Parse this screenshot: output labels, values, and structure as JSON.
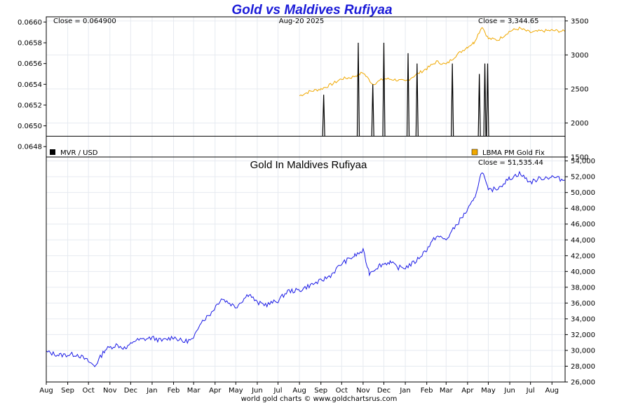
{
  "chart_data": [
    {
      "type": "line",
      "title": "Gold vs Maldives Rufiyaa",
      "date_label": "Aug-20  2025",
      "left_close": "Close = 0.064900",
      "right_close": "Close = 3,344.65",
      "y_left_ticks": [
        "0.0648",
        "0.0650",
        "0.0652",
        "0.0654",
        "0.0656",
        "0.0658",
        "0.0660"
      ],
      "y_left_range": [
        0.0647,
        0.06605
      ],
      "y_right_ticks": [
        "1500",
        "2000",
        "2500",
        "3000",
        "3500"
      ],
      "y_right_range": [
        1500,
        3560
      ],
      "legend": [
        "MVR / USD",
        "LBMA PM Gold Fix"
      ],
      "series": [
        {
          "name": "MVR / USD",
          "color": "#000000",
          "baseline": 0.0649,
          "spikes": [
            {
              "date": "2024-09-05",
              "value": 0.0653
            },
            {
              "date": "2024-10-25",
              "value": 0.0658
            },
            {
              "date": "2024-11-15",
              "value": 0.0654
            },
            {
              "date": "2024-12-01",
              "value": 0.0658
            },
            {
              "date": "2025-01-05",
              "value": 0.0657
            },
            {
              "date": "2025-01-18",
              "value": 0.0656
            },
            {
              "date": "2025-03-10",
              "value": 0.0656
            },
            {
              "date": "2025-04-18",
              "value": 0.0655
            },
            {
              "date": "2025-04-26",
              "value": 0.0656
            },
            {
              "date": "2025-04-30",
              "value": 0.0656
            }
          ]
        },
        {
          "name": "LBMA PM Gold Fix",
          "color": "#f0a800",
          "points": [
            [
              "2024-08-01",
              2400
            ],
            [
              "2024-08-15",
              2460
            ],
            [
              "2024-09-01",
              2500
            ],
            [
              "2024-09-15",
              2560
            ],
            [
              "2024-10-01",
              2650
            ],
            [
              "2024-10-15",
              2670
            ],
            [
              "2024-11-01",
              2740
            ],
            [
              "2024-11-15",
              2570
            ],
            [
              "2024-12-01",
              2650
            ],
            [
              "2024-12-15",
              2640
            ],
            [
              "2025-01-01",
              2610
            ],
            [
              "2025-01-15",
              2700
            ],
            [
              "2025-02-01",
              2800
            ],
            [
              "2025-02-15",
              2900
            ],
            [
              "2025-03-01",
              2860
            ],
            [
              "2025-03-15",
              2990
            ],
            [
              "2025-04-01",
              3120
            ],
            [
              "2025-04-10",
              3180
            ],
            [
              "2025-04-22",
              3420
            ],
            [
              "2025-05-01",
              3240
            ],
            [
              "2025-05-15",
              3220
            ],
            [
              "2025-06-01",
              3350
            ],
            [
              "2025-06-15",
              3390
            ],
            [
              "2025-07-01",
              3330
            ],
            [
              "2025-07-15",
              3350
            ],
            [
              "2025-08-01",
              3360
            ],
            [
              "2025-08-20",
              3344.65
            ]
          ]
        }
      ]
    },
    {
      "type": "line",
      "title": "Gold In Maldives Rufiyaa",
      "right_close": "Close = 51,535.44",
      "y_ticks": [
        "26,000",
        "28,000",
        "30,000",
        "32,000",
        "34,000",
        "36,000",
        "38,000",
        "40,000",
        "42,000",
        "44,000",
        "46,000",
        "48,000",
        "50,000",
        "52,000",
        "54,000"
      ],
      "y_range": [
        26000,
        54500
      ],
      "series": [
        {
          "name": "Gold In Maldives Rufiyaa",
          "color": "#1a1ae6",
          "points": [
            [
              "2023-08-01",
              29800
            ],
            [
              "2023-08-20",
              29400
            ],
            [
              "2023-09-15",
              29500
            ],
            [
              "2023-10-01",
              28600
            ],
            [
              "2023-10-10",
              28000
            ],
            [
              "2023-10-25",
              30100
            ],
            [
              "2023-11-10",
              30700
            ],
            [
              "2023-11-25",
              30200
            ],
            [
              "2023-12-05",
              31200
            ],
            [
              "2023-12-20",
              31400
            ],
            [
              "2024-01-01",
              31600
            ],
            [
              "2024-01-15",
              31200
            ],
            [
              "2024-02-01",
              31700
            ],
            [
              "2024-02-15",
              31100
            ],
            [
              "2024-03-01",
              31400
            ],
            [
              "2024-03-10",
              33500
            ],
            [
              "2024-03-25",
              34600
            ],
            [
              "2024-04-10",
              36600
            ],
            [
              "2024-04-20",
              36100
            ],
            [
              "2024-05-01",
              35500
            ],
            [
              "2024-05-20",
              37200
            ],
            [
              "2024-06-01",
              36000
            ],
            [
              "2024-06-15",
              35800
            ],
            [
              "2024-07-01",
              36300
            ],
            [
              "2024-07-15",
              37500
            ],
            [
              "2024-08-01",
              37600
            ],
            [
              "2024-08-15",
              38200
            ],
            [
              "2024-09-01",
              38800
            ],
            [
              "2024-09-15",
              39500
            ],
            [
              "2024-10-01",
              41000
            ],
            [
              "2024-10-20",
              42000
            ],
            [
              "2024-11-01",
              42600
            ],
            [
              "2024-11-10",
              39800
            ],
            [
              "2024-11-25",
              40800
            ],
            [
              "2024-12-10",
              41200
            ],
            [
              "2024-12-20",
              40500
            ],
            [
              "2025-01-01",
              40500
            ],
            [
              "2025-01-15",
              41200
            ],
            [
              "2025-02-01",
              42800
            ],
            [
              "2025-02-15",
              44500
            ],
            [
              "2025-03-01",
              44000
            ],
            [
              "2025-03-15",
              45800
            ],
            [
              "2025-04-01",
              47800
            ],
            [
              "2025-04-10",
              49000
            ],
            [
              "2025-04-22",
              52800
            ],
            [
              "2025-05-01",
              50200
            ],
            [
              "2025-05-15",
              50600
            ],
            [
              "2025-06-01",
              51800
            ],
            [
              "2025-06-15",
              52400
            ],
            [
              "2025-07-01",
              51300
            ],
            [
              "2025-07-15",
              51800
            ],
            [
              "2025-08-01",
              52000
            ],
            [
              "2025-08-20",
              51535.44
            ]
          ]
        }
      ]
    }
  ],
  "x_axis_ticks": [
    "Aug",
    "Sep",
    "Oct",
    "Nov",
    "Dec",
    "Jan",
    "Feb",
    "Mar",
    "Apr",
    "May",
    "Jun",
    "Jul",
    "Aug",
    "Sep",
    "Oct",
    "Nov",
    "Dec",
    "Jan",
    "Feb",
    "Mar",
    "Apr",
    "May",
    "Jun",
    "Jul",
    "Aug"
  ],
  "x_range": [
    "2023-08-01",
    "2025-08-20"
  ],
  "footer": "world gold charts © www.goldchartsrus.com"
}
